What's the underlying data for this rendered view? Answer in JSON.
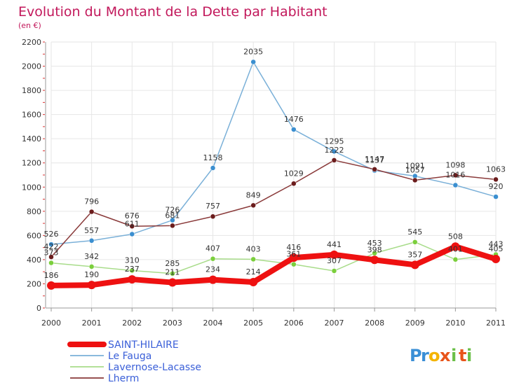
{
  "header": {
    "title": "Evolution du Montant de la Dette par Habitant",
    "subtitle": "(en €)"
  },
  "brand": {
    "letters": [
      "P",
      "r",
      "o",
      "x",
      "i",
      "t",
      "i"
    ],
    "colors": [
      "#3a8fd6",
      "#3a8fd6",
      "#f4b400",
      "#e8541a",
      "#6cc04a",
      "#e8541a",
      "#6cc04a"
    ]
  },
  "colors": {
    "title": "#c2185b",
    "legend_text": "#3a5fd8",
    "grid": "#e6e6e6",
    "axis": "#999999",
    "tick_mark": "#d33"
  },
  "chart_data": {
    "type": "line",
    "title": "Evolution du Montant de la Dette par Habitant",
    "subtitle": "(en €)",
    "xlabel": "",
    "ylabel": "",
    "x": [
      "2000",
      "2001",
      "2002",
      "2003",
      "2004",
      "2005",
      "2006",
      "2007",
      "2008",
      "2009",
      "2010",
      "2011"
    ],
    "y_ticks": [
      "0",
      "200",
      "400",
      "600",
      "800",
      "1000",
      "1200",
      "1400",
      "1600",
      "1800",
      "2000",
      "2200"
    ],
    "ylim": [
      0,
      2200
    ],
    "grid": true,
    "legend_position": "bottom-left",
    "series": [
      {
        "name": "SAINT-HILAIRE",
        "color": "#ee1111",
        "marker": "#ee1111",
        "values": [
          186,
          190,
          237,
          211,
          234,
          214,
          416,
          441,
          398,
          357,
          508,
          405
        ],
        "labels": [
          "186",
          "190",
          "237",
          "211",
          "234",
          "214",
          "416",
          "441",
          "398",
          "357",
          "508",
          "405"
        ]
      },
      {
        "name": "Le Fauga",
        "color": "#7ab0d8",
        "marker": "#3b8fd0",
        "values": [
          526,
          557,
          611,
          726,
          1158,
          2035,
          1476,
          1295,
          1137,
          1091,
          1016,
          920
        ],
        "labels": [
          "526",
          "557",
          "611",
          "726",
          "1158",
          "2035",
          "1476",
          "1295",
          "1137",
          "1091",
          "1016",
          "920"
        ]
      },
      {
        "name": "Lavernose-Lacasse",
        "color": "#a8dc8a",
        "marker": "#7bcf3c",
        "values": [
          373,
          342,
          310,
          285,
          407,
          403,
          361,
          307,
          453,
          545,
          401,
          443
        ],
        "labels": [
          "373",
          "342",
          "310",
          "285",
          "407",
          "403",
          "361",
          "307",
          "453",
          "545",
          "401",
          "443"
        ]
      },
      {
        "name": "Lherm",
        "color": "#8a3a3a",
        "marker": "#6b1c1c",
        "values": [
          422,
          796,
          676,
          681,
          757,
          849,
          1029,
          1222,
          1147,
          1057,
          1098,
          1063
        ],
        "labels": [
          "422",
          "796",
          "676",
          "681",
          "757",
          "849",
          "1029",
          "1222",
          "1147",
          "1057",
          "1098",
          "1063"
        ]
      }
    ]
  }
}
